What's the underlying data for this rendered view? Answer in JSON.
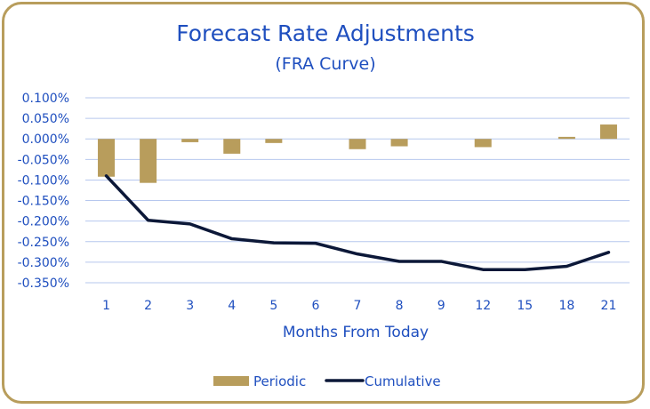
{
  "chart_data": {
    "type": "bar",
    "title": "Forecast Rate Adjustments",
    "subtitle": "(FRA Curve)",
    "xlabel": "Months From Today",
    "ylabel": "",
    "categories": [
      "1",
      "2",
      "3",
      "4",
      "5",
      "6",
      "7",
      "8",
      "9",
      "12",
      "15",
      "18",
      "21"
    ],
    "y_ticks": [
      "0.100%",
      "0.050%",
      "0.000%",
      "-0.050%",
      "-0.100%",
      "-0.150%",
      "-0.200%",
      "-0.250%",
      "-0.300%",
      "-0.350%"
    ],
    "ylim": [
      -0.35,
      0.1
    ],
    "grid": true,
    "legend_position": "bottom",
    "series": [
      {
        "name": "Periodic",
        "type": "bar",
        "color": "#b89d5c",
        "values": [
          -0.092,
          -0.107,
          -0.008,
          -0.036,
          -0.01,
          0.0,
          -0.025,
          -0.018,
          0.0,
          -0.02,
          0.0,
          0.005,
          0.035
        ]
      },
      {
        "name": "Cumulative",
        "type": "line",
        "color": "#0c1838",
        "values": [
          -0.09,
          -0.198,
          -0.207,
          -0.243,
          -0.253,
          -0.254,
          -0.28,
          -0.298,
          -0.298,
          -0.318,
          -0.318,
          -0.31,
          -0.276
        ]
      }
    ]
  }
}
